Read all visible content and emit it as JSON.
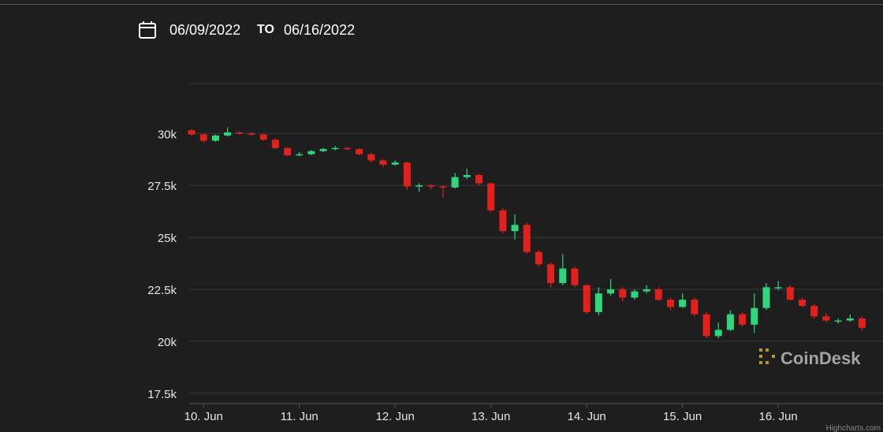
{
  "header": {
    "from_date": "06/09/2022",
    "to_label": "TO",
    "to_date": "06/16/2022"
  },
  "chart_data": {
    "type": "candlestick",
    "x": [
      9.875,
      10,
      10.125,
      10.25,
      10.375,
      10.5,
      10.625,
      10.75,
      10.875,
      11,
      11.125,
      11.25,
      11.375,
      11.5,
      11.625,
      11.75,
      11.875,
      12,
      12.125,
      12.25,
      12.375,
      12.5,
      12.625,
      12.75,
      12.875,
      13,
      13.125,
      13.25,
      13.375,
      13.5,
      13.625,
      13.75,
      13.875,
      14,
      14.125,
      14.25,
      14.375,
      14.5,
      14.625,
      14.75,
      14.875,
      15,
      15.125,
      15.25,
      15.375,
      15.5,
      15.625,
      15.75,
      15.875,
      16,
      16.125,
      16.25,
      16.375,
      16.5,
      16.625,
      16.75,
      16.875
    ],
    "open": [
      30150,
      29950,
      29650,
      29900,
      30050,
      30000,
      29950,
      29700,
      29300,
      28950,
      29000,
      29150,
      29250,
      29300,
      29250,
      29000,
      28700,
      28500,
      28600,
      27450,
      27500,
      27450,
      27400,
      27900,
      28000,
      27600,
      26300,
      25300,
      25600,
      24300,
      23700,
      22800,
      23500,
      22700,
      21400,
      22300,
      22500,
      22100,
      22400,
      22500,
      22000,
      21650,
      22000,
      21300,
      20250,
      20550,
      21300,
      20800,
      21600,
      22600,
      22600,
      22000,
      21700,
      21200,
      21000,
      21000,
      21100
    ],
    "high": [
      30200,
      29980,
      29950,
      30300,
      30100,
      30050,
      29980,
      29750,
      29350,
      29100,
      29200,
      29300,
      29400,
      29350,
      29300,
      29050,
      28750,
      28700,
      28650,
      27600,
      27550,
      27500,
      28100,
      28300,
      28050,
      27650,
      26400,
      26100,
      25700,
      24400,
      23800,
      24200,
      23600,
      22750,
      22600,
      23000,
      22600,
      22500,
      22700,
      22600,
      22100,
      22300,
      22100,
      21400,
      20900,
      21500,
      21400,
      22300,
      22800,
      22900,
      22700,
      22100,
      21800,
      21350,
      21100,
      21300,
      21200
    ],
    "low": [
      29900,
      29550,
      29600,
      29850,
      29950,
      29900,
      29650,
      29250,
      28900,
      28900,
      28950,
      29100,
      29200,
      29200,
      28950,
      28600,
      28400,
      28450,
      27300,
      27200,
      27300,
      26900,
      27350,
      27800,
      27500,
      26200,
      25200,
      24900,
      24200,
      23600,
      22600,
      22700,
      22600,
      21300,
      21250,
      22200,
      21900,
      22000,
      22300,
      21950,
      21500,
      21600,
      21200,
      20150,
      20150,
      20500,
      20700,
      20400,
      21500,
      22450,
      21950,
      21650,
      21100,
      20900,
      20850,
      20950,
      20500
    ],
    "close": [
      29950,
      29650,
      29900,
      30050,
      30000,
      29950,
      29700,
      29300,
      28950,
      29000,
      29150,
      29250,
      29300,
      29250,
      29000,
      28700,
      28500,
      28600,
      27450,
      27500,
      27450,
      27400,
      27900,
      28000,
      27600,
      26300,
      25300,
      25600,
      24300,
      23700,
      22800,
      23500,
      22700,
      21400,
      22300,
      22500,
      22100,
      22400,
      22500,
      22000,
      21650,
      22000,
      21300,
      20250,
      20550,
      21300,
      20800,
      21600,
      22600,
      22600,
      22000,
      21700,
      21200,
      21000,
      21000,
      21100,
      20650
    ],
    "up_color": "#2fd67b",
    "down_color": "#e3211c",
    "xlim": [
      9.85,
      16.97
    ],
    "xticks": [
      {
        "value": 10,
        "label": "10. Jun"
      },
      {
        "value": 11,
        "label": "11. Jun"
      },
      {
        "value": 12,
        "label": "12. Jun"
      },
      {
        "value": 13,
        "label": "13. Jun"
      },
      {
        "value": 14,
        "label": "14. Jun"
      },
      {
        "value": 15,
        "label": "15. Jun"
      },
      {
        "value": 16,
        "label": "16. Jun"
      }
    ],
    "ylim": [
      17000,
      32400
    ],
    "yticks": [
      {
        "value": 17500,
        "label": "17.5k"
      },
      {
        "value": 20000,
        "label": "20k"
      },
      {
        "value": 22500,
        "label": "22.5k"
      },
      {
        "value": 25000,
        "label": "25k"
      },
      {
        "value": 27500,
        "label": "27.5k"
      },
      {
        "value": 30000,
        "label": "30k"
      }
    ],
    "grid": true,
    "watermark": "CoinDesk",
    "credit": "Highcharts.com"
  }
}
